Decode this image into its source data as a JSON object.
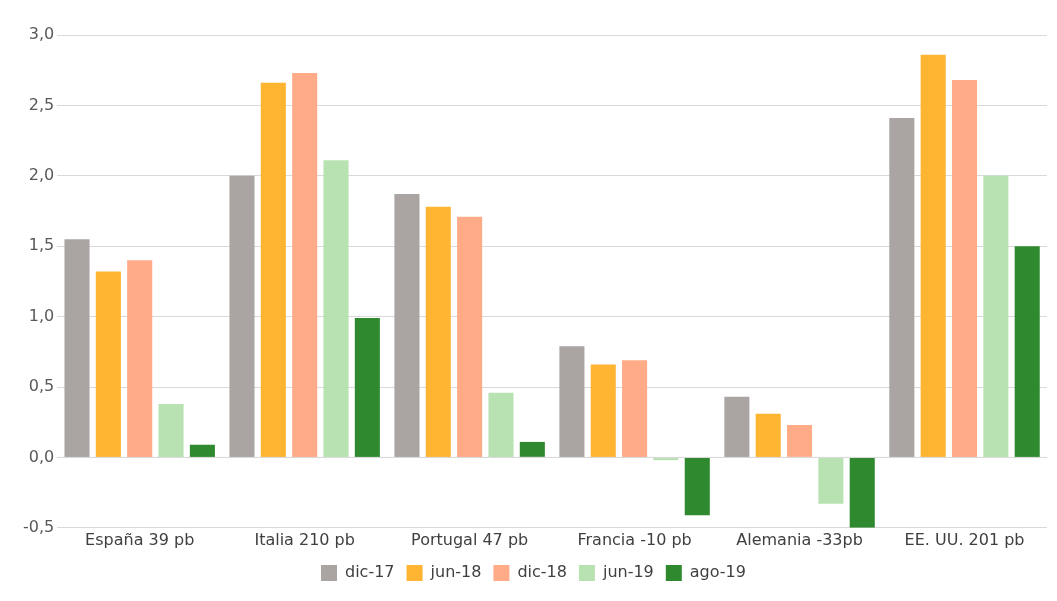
{
  "chart_data": {
    "type": "bar",
    "categories": [
      "España 39 pb",
      "Italia 210 pb",
      "Portugal 47 pb",
      "Francia -10 pb",
      "Alemania -33pb",
      "EE. UU. 201 pb"
    ],
    "series": [
      {
        "name": "dic-17",
        "color": "#aaa5a3",
        "values": [
          1.55,
          2.0,
          1.87,
          0.79,
          0.43,
          2.41
        ]
      },
      {
        "name": "jun-18",
        "color": "#ffb432",
        "values": [
          1.32,
          2.66,
          1.78,
          0.66,
          0.31,
          2.86
        ]
      },
      {
        "name": "dic-18",
        "color": "#ffab88",
        "values": [
          1.4,
          2.73,
          1.71,
          0.69,
          0.23,
          2.68
        ]
      },
      {
        "name": "jun-19",
        "color": "#b9e2b2",
        "values": [
          0.38,
          2.11,
          0.46,
          -0.02,
          -0.33,
          2.0
        ]
      },
      {
        "name": "ago-19",
        "color": "#2f8a2f",
        "values": [
          0.09,
          0.99,
          0.11,
          -0.41,
          -0.5,
          1.5
        ]
      }
    ],
    "ylim": [
      -0.5,
      3.0
    ],
    "yticks": [
      {
        "value": -0.5,
        "label": "-0,5"
      },
      {
        "value": 0,
        "label": "0,0"
      },
      {
        "value": 0.5,
        "label": "0,5"
      },
      {
        "value": 1,
        "label": "1,0"
      },
      {
        "value": 1.5,
        "label": "1,5"
      },
      {
        "value": 2,
        "label": "2,0"
      },
      {
        "value": 2.5,
        "label": "2,5"
      },
      {
        "value": 3,
        "label": "3,0"
      }
    ],
    "grid": "y",
    "legend": "bottom"
  }
}
